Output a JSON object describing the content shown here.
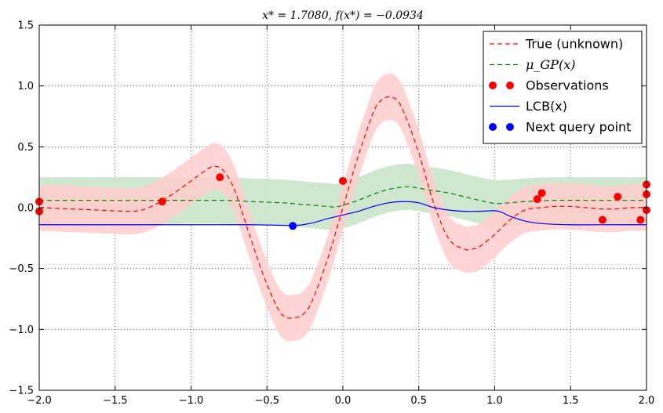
{
  "chart_data": {
    "type": "line",
    "title": "x* = 1.7080, f(x*) = −0.0934",
    "xlim": [
      -2.0,
      2.0
    ],
    "ylim": [
      -1.5,
      1.5
    ],
    "x_ticks": [
      -2.0,
      -1.5,
      -1.0,
      -0.5,
      0.0,
      0.5,
      1.0,
      1.5,
      2.0
    ],
    "y_ticks": [
      -1.5,
      -1.0,
      -0.5,
      0.0,
      0.5,
      1.0,
      1.5
    ],
    "x_tick_labels": [
      "−2.0",
      "−1.5",
      "−1.0",
      "−0.5",
      "0.0",
      "0.5",
      "1.0",
      "1.5",
      "2.0"
    ],
    "y_tick_labels": [
      "−1.5",
      "−1.0",
      "−0.5",
      "0.0",
      "0.5",
      "1.0",
      "1.5"
    ],
    "grid": true,
    "legend_position": "top-right",
    "series": [
      {
        "name": "True (unknown)",
        "style": "dashed",
        "color": "#ff0000",
        "band_color": "#ffcccc",
        "band_halfwidth": 0.19,
        "x": [
          -2.0,
          -1.8,
          -1.6,
          -1.4,
          -1.3,
          -1.2,
          -1.1,
          -1.0,
          -0.9,
          -0.85,
          -0.8,
          -0.75,
          -0.7,
          -0.6,
          -0.5,
          -0.4,
          -0.3,
          -0.25,
          -0.2,
          -0.1,
          0.0,
          0.1,
          0.2,
          0.25,
          0.3,
          0.35,
          0.4,
          0.5,
          0.6,
          0.7,
          0.8,
          0.85,
          0.9,
          1.0,
          1.1,
          1.2,
          1.3,
          1.4,
          1.5,
          1.6,
          1.7,
          1.8,
          1.9,
          2.0
        ],
        "values": [
          0.0,
          -0.01,
          -0.02,
          -0.03,
          -0.01,
          0.05,
          0.13,
          0.22,
          0.31,
          0.34,
          0.32,
          0.24,
          0.1,
          -0.28,
          -0.63,
          -0.88,
          -0.9,
          -0.86,
          -0.76,
          -0.42,
          0.0,
          0.42,
          0.78,
          0.88,
          0.91,
          0.89,
          0.79,
          0.45,
          0.03,
          -0.26,
          -0.34,
          -0.34,
          -0.32,
          -0.22,
          -0.1,
          -0.02,
          0.0,
          0.01,
          0.01,
          0.0,
          -0.01,
          -0.01,
          0.0,
          0.0
        ]
      },
      {
        "name": "μ_GP(x)",
        "style": "dashed",
        "color": "#008000",
        "band_color": "#cce6cc",
        "band_halfwidth": 0.19,
        "x": [
          -2.0,
          -1.6,
          -1.2,
          -0.8,
          -0.6,
          -0.4,
          -0.3,
          -0.2,
          -0.1,
          -0.05,
          0.0,
          0.1,
          0.2,
          0.3,
          0.4,
          0.45,
          0.5,
          0.6,
          0.7,
          0.8,
          0.9,
          1.0,
          1.1,
          1.2,
          1.4,
          1.6,
          1.8,
          2.0
        ],
        "values": [
          0.06,
          0.06,
          0.06,
          0.06,
          0.05,
          0.04,
          0.03,
          0.02,
          0.01,
          0.005,
          0.02,
          0.06,
          0.11,
          0.15,
          0.17,
          0.17,
          0.16,
          0.14,
          0.12,
          0.09,
          0.06,
          0.035,
          0.04,
          0.05,
          0.06,
          0.06,
          0.06,
          0.06
        ]
      },
      {
        "name": "LCB(x)",
        "style": "solid",
        "color": "#0000ff",
        "x": [
          -2.0,
          -1.5,
          -1.0,
          -0.6,
          -0.4,
          -0.3,
          -0.2,
          -0.1,
          0.0,
          0.1,
          0.2,
          0.3,
          0.4,
          0.5,
          0.6,
          0.7,
          0.8,
          0.9,
          1.0,
          1.05,
          1.1,
          1.2,
          1.3,
          1.5,
          1.8,
          2.0
        ],
        "values": [
          -0.14,
          -0.14,
          -0.14,
          -0.14,
          -0.145,
          -0.145,
          -0.125,
          -0.09,
          -0.06,
          -0.03,
          0.01,
          0.04,
          0.05,
          0.04,
          0.0,
          -0.02,
          -0.03,
          -0.03,
          -0.025,
          -0.04,
          -0.07,
          -0.11,
          -0.13,
          -0.14,
          -0.14,
          -0.14
        ]
      }
    ],
    "observations": {
      "name": "Observations",
      "color": "#ff0000",
      "points": [
        [
          -2.0,
          0.05
        ],
        [
          -2.0,
          -0.03
        ],
        [
          -1.19,
          0.05
        ],
        [
          -0.81,
          0.25
        ],
        [
          0.0,
          0.22
        ],
        [
          1.28,
          0.07
        ],
        [
          1.31,
          0.12
        ],
        [
          1.71,
          -0.1
        ],
        [
          1.81,
          0.09
        ],
        [
          1.96,
          -0.1
        ],
        [
          2.0,
          0.19
        ],
        [
          2.0,
          0.11
        ],
        [
          2.0,
          -0.02
        ]
      ]
    },
    "next_query": {
      "name": "Next query point",
      "color": "#0000ff",
      "points": [
        [
          -0.33,
          -0.15
        ]
      ]
    }
  }
}
